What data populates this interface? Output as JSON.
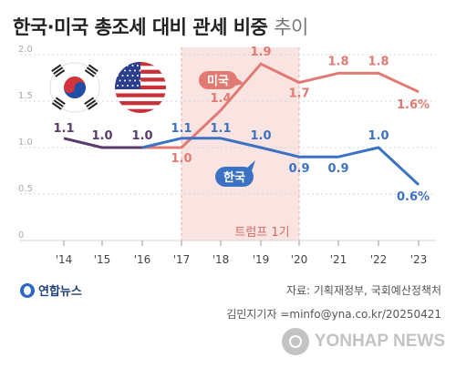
{
  "title": {
    "main": "한국·미국 총조세 대비 관세 비중",
    "sub": "추이"
  },
  "chart_data": {
    "type": "line",
    "title": "한국·미국 총조세 대비 관세 비중 추이",
    "x": [
      "'14",
      "'15",
      "'16",
      "'17",
      "'18",
      "'19",
      "'20",
      "'21",
      "'22",
      "'23"
    ],
    "ylim": [
      0,
      2.0
    ],
    "yticks": [
      "0",
      "0.5",
      "1.0",
      "1.5",
      "2.0"
    ],
    "grid": true,
    "series": [
      {
        "name": "한국",
        "color": "#3b72c4",
        "values": [
          1.1,
          1.0,
          1.0,
          1.1,
          1.1,
          1.0,
          0.9,
          0.9,
          1.0,
          0.6
        ],
        "labels": [
          "1.1",
          "1.0",
          "1.0",
          "1.1",
          "1.1",
          "1.0",
          "0.9",
          "0.9",
          "1.0",
          "0.6%"
        ]
      },
      {
        "name": "미국",
        "color": "#e07a72",
        "values": [
          null,
          null,
          1.0,
          1.0,
          1.4,
          1.9,
          1.7,
          1.8,
          1.8,
          1.6
        ],
        "labels": [
          "",
          "",
          "",
          "1.0",
          "1.4",
          "1.9",
          "1.7",
          "1.8",
          "1.8",
          "1.6%"
        ]
      }
    ],
    "annotation": {
      "label": "트럼프 1기",
      "x_start": "'17",
      "x_end": "'20"
    }
  },
  "logo": "연합뉴스",
  "source": "자료: 기획재정부, 국회예산정책처",
  "credit": "김민지기자 =minfo@yna.co.kr/20250421",
  "watermark": "YONHAP NEWS",
  "colors": {
    "korea": "#3b72c4",
    "usa": "#e07a72",
    "trump_band": "#f9e4e2",
    "pre_period_line": "#5b3a6e"
  }
}
